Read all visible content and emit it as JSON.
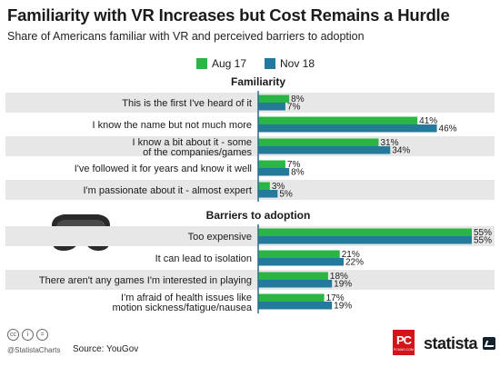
{
  "header": {
    "title": "Familiarity with VR Increases but Cost Remains a Hurdle",
    "subtitle": "Share of Americans familiar with VR and perceived barriers to adoption"
  },
  "colors": {
    "aug": "#2bb544",
    "nov": "#247a9a",
    "band": "#e7e7e7",
    "axis": "#2a6f8c"
  },
  "chart_data": {
    "type": "bar",
    "orientation": "horizontal",
    "series": [
      {
        "name": "Aug 17"
      },
      {
        "name": "Nov 18"
      }
    ],
    "groups": [
      {
        "title": "Familiarity",
        "categories": [
          {
            "label": [
              "This is the first I've heard of it"
            ],
            "values": [
              8,
              7
            ]
          },
          {
            "label": [
              "I know the name but not much more"
            ],
            "values": [
              41,
              46
            ]
          },
          {
            "label": [
              "I know a bit about it - some",
              "of the companies/games"
            ],
            "values": [
              31,
              34
            ]
          },
          {
            "label": [
              "I've followed it for years and know it well"
            ],
            "values": [
              7,
              8
            ]
          },
          {
            "label": [
              "I'm passionate about it - almost expert"
            ],
            "values": [
              3,
              5
            ]
          }
        ]
      },
      {
        "title": "Barriers to adoption",
        "categories": [
          {
            "label": [
              "Too expensive"
            ],
            "values": [
              55,
              55
            ]
          },
          {
            "label": [
              "It can lead to isolation"
            ],
            "values": [
              21,
              22
            ]
          },
          {
            "label": [
              "There aren't any games I'm interested in playing"
            ],
            "values": [
              18,
              19
            ]
          },
          {
            "label": [
              "I'm afraid of health issues like",
              "motion sickness/fatigue/nausea"
            ],
            "values": [
              17,
              19
            ]
          }
        ]
      }
    ],
    "value_suffix": "%",
    "xlim": [
      0,
      55
    ],
    "legend_position": "top-center"
  },
  "footer": {
    "cc_icons": [
      "cc",
      "i",
      "="
    ],
    "handle": "@StatistaCharts",
    "source": "Source: YouGov",
    "pc_logo": "PC",
    "pc_sub": "PCMAG.COM",
    "brand": "statista"
  }
}
